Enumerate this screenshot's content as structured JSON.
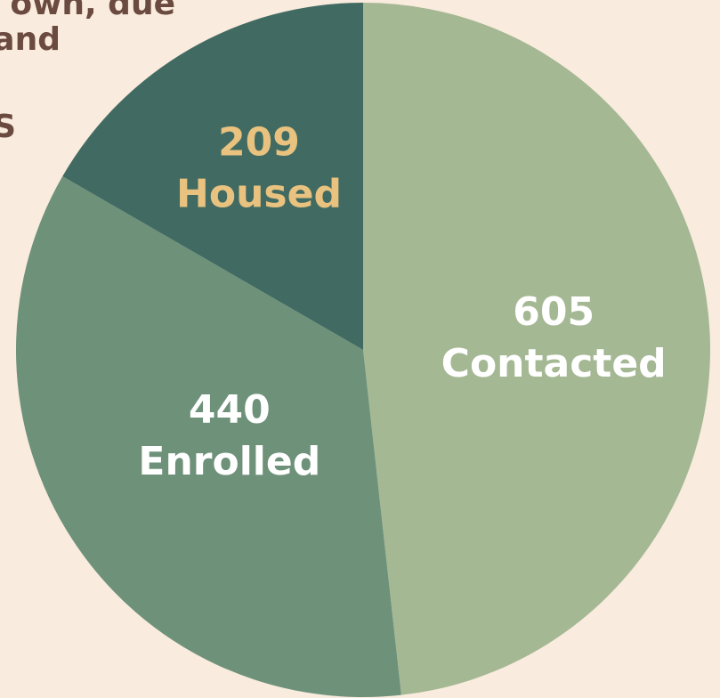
{
  "chart_data": {
    "type": "pie",
    "annotations": [
      "own, due",
      "and",
      "S"
    ],
    "categories": [
      "Contacted",
      "Enrolled",
      "Housed"
    ],
    "values": [
      605,
      440,
      209
    ],
    "colors": [
      "#a5b894",
      "#6e917a",
      "#416b62"
    ],
    "label_colors": [
      "#ffffff",
      "#ffffff",
      "#e9c27f"
    ]
  }
}
